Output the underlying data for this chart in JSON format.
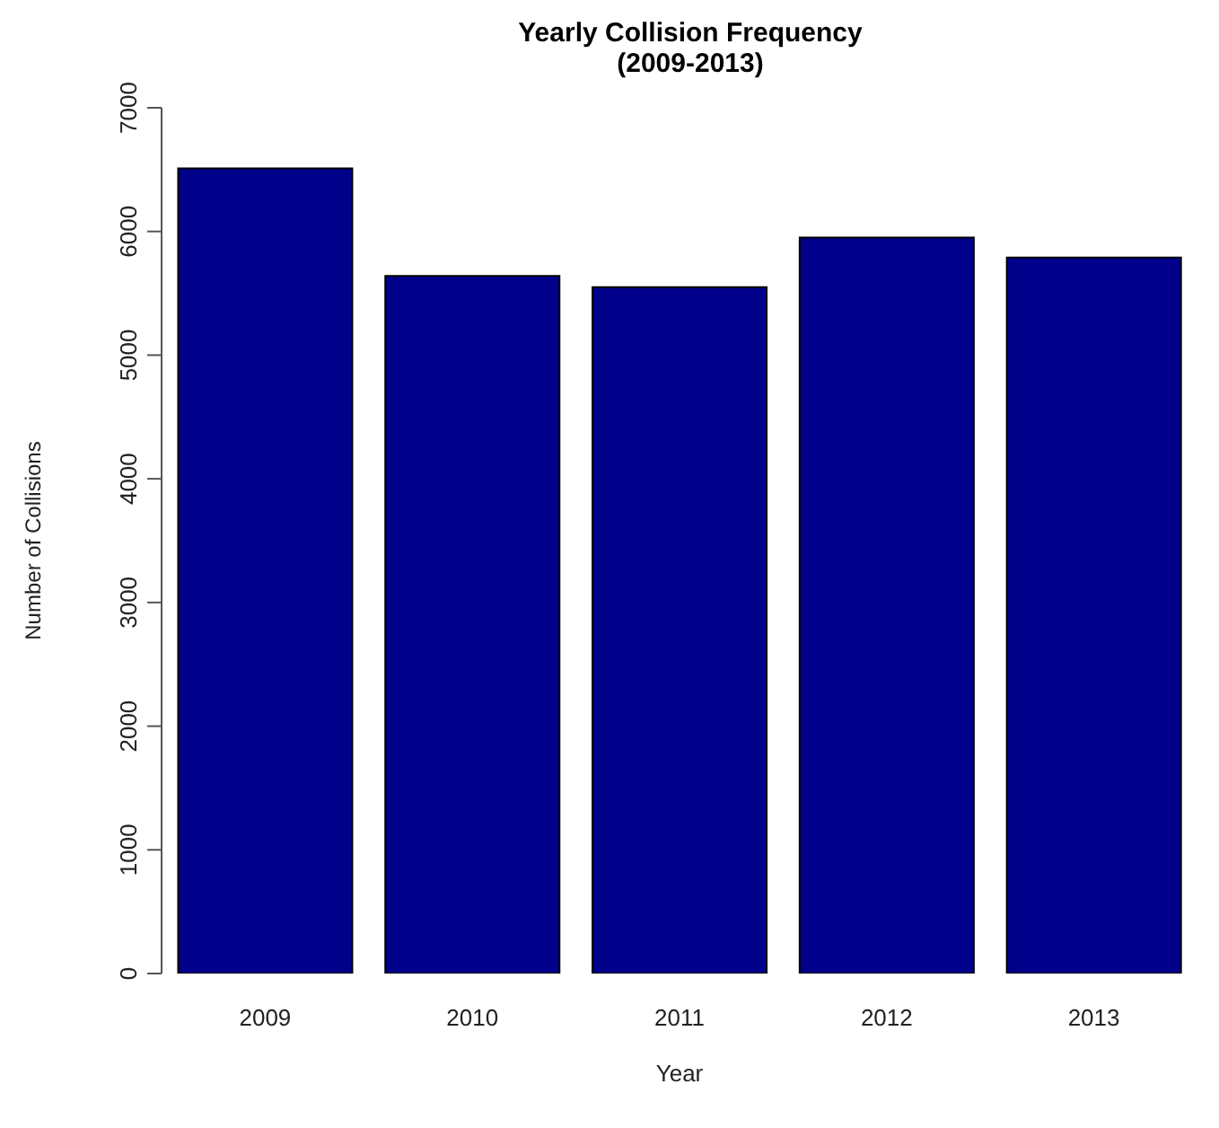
{
  "chart_data": {
    "type": "bar",
    "title": "Yearly Collision Frequency\n(2009-2013)",
    "xlabel": "Year",
    "ylabel": "Number of Collisions",
    "categories": [
      "2009",
      "2010",
      "2011",
      "2012",
      "2013"
    ],
    "values": [
      6510,
      5640,
      5550,
      5950,
      5790
    ],
    "color": "#00008b",
    "ylim": [
      0,
      7000
    ],
    "yticks": [
      0,
      1000,
      2000,
      3000,
      4000,
      5000,
      6000,
      7000
    ],
    "grid": false
  }
}
